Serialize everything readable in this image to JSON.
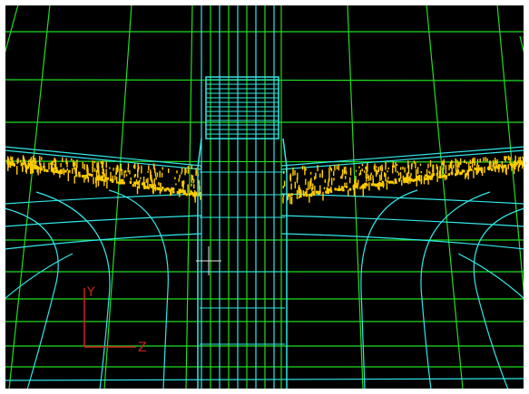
{
  "viewport": {
    "background_color": "#000000",
    "frame_color": "#ffffff",
    "colors": {
      "green_grid": "#22dd22",
      "cyan_mesh": "#33e6e6",
      "yellow_points": "#ffcc00",
      "axis": "#cc2222",
      "cursor": "#e6e6e6"
    }
  },
  "axis_triad": {
    "vertical_label": "Y",
    "horizontal_label": "Z"
  },
  "cursor_icon": "crosshair-icon"
}
